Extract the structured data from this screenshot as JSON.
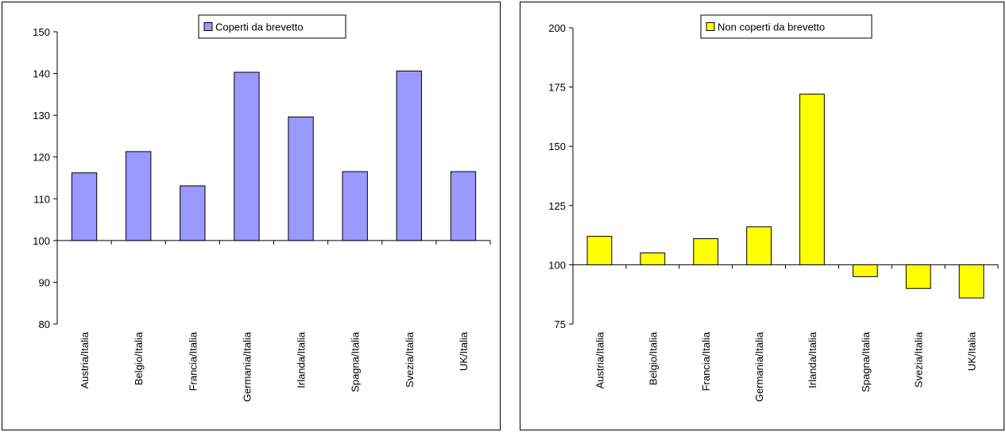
{
  "chart_data": [
    {
      "type": "bar",
      "categories": [
        "Austria/Italia",
        "Belgio/Italia",
        "Francia/Italia",
        "Germania/Italia",
        "Irlanda/Italia",
        "Spagna/Italia",
        "Svezia/Italia",
        "UK/Italia"
      ],
      "series": [
        {
          "name": "Coperti da brevetto",
          "color": "#9999ff",
          "values": [
            116.2,
            121.3,
            113.1,
            140.3,
            129.6,
            116.5,
            140.6,
            116.5
          ]
        }
      ],
      "baseline": 100,
      "ylim": [
        80,
        150
      ],
      "yticks": [
        80,
        90,
        100,
        110,
        120,
        130,
        140,
        150
      ],
      "legend": "top-center",
      "grid": false,
      "title": "",
      "xlabel": "",
      "ylabel": ""
    },
    {
      "type": "bar",
      "categories": [
        "Austria/Italia",
        "Belgio/Italia",
        "Francia/Italia",
        "Germania/Italia",
        "Irlanda/Italia",
        "Spagna/Italia",
        "Svezia/Italia",
        "UK/Italia"
      ],
      "series": [
        {
          "name": "Non coperti da brevetto",
          "color": "#ffff00",
          "values": [
            112,
            105,
            111,
            116,
            172,
            95,
            90,
            86
          ]
        }
      ],
      "baseline": 100,
      "ylim": [
        75,
        200
      ],
      "yticks": [
        75,
        100,
        125,
        150,
        175,
        200
      ],
      "legend": "top-center",
      "grid": false,
      "title": "",
      "xlabel": "",
      "ylabel": ""
    }
  ]
}
